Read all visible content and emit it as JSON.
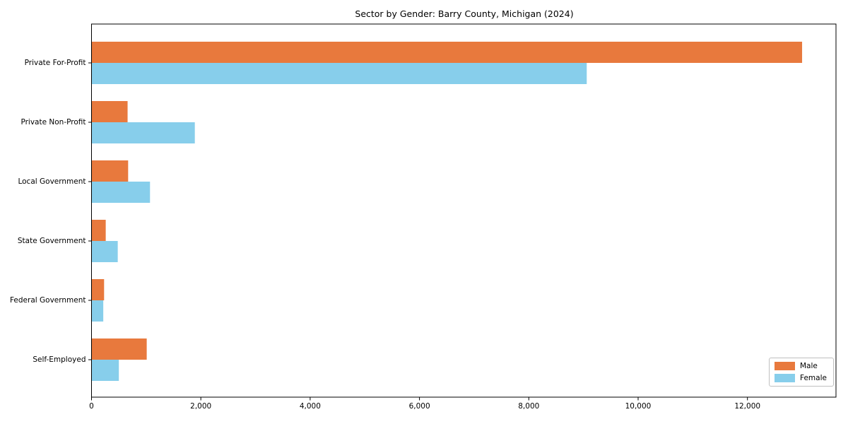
{
  "chart_data": {
    "type": "bar",
    "orientation": "horizontal",
    "title": "Sector by Gender: Barry County, Michigan (2024)",
    "categories": [
      "Private For-Profit",
      "Private Non-Profit",
      "Local Government",
      "State Government",
      "Federal Government",
      "Self-Employed"
    ],
    "series": [
      {
        "name": "Male",
        "color": "#e8793d",
        "values": [
          13000,
          660,
          670,
          260,
          230,
          1010
        ]
      },
      {
        "name": "Female",
        "color": "#87ceeb",
        "values": [
          9060,
          1890,
          1070,
          480,
          215,
          500
        ]
      }
    ],
    "xlabel": "",
    "ylabel": "",
    "xlim": [
      0,
      13620
    ],
    "xticks": [
      0,
      2000,
      4000,
      6000,
      8000,
      10000,
      12000
    ],
    "xtick_labels": [
      "0",
      "2,000",
      "4,000",
      "6,000",
      "8,000",
      "10,000",
      "12,000"
    ],
    "grid": false,
    "legend": {
      "position": "lower right",
      "items": [
        "Male",
        "Female"
      ]
    },
    "colors": {
      "axis": "#000000",
      "background": "#ffffff",
      "legend_border": "#c0c0c0"
    }
  }
}
